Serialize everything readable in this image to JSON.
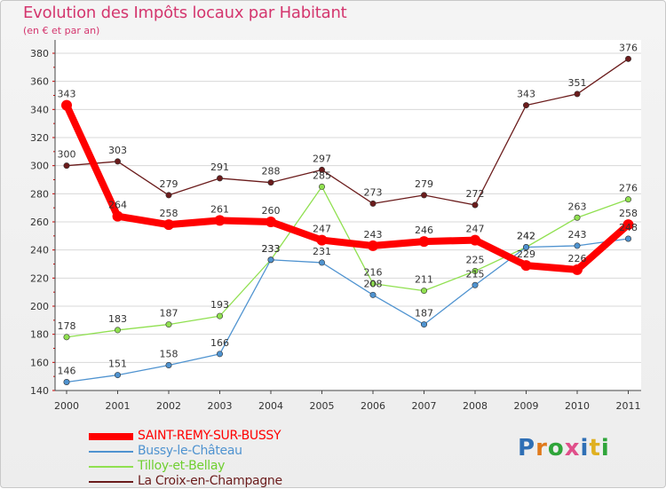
{
  "header": {
    "title": "Evolution des Impôts locaux par Habitant",
    "subtitle": "(en € et par an)"
  },
  "logo": {
    "text": "Proxiti",
    "letter_colors": [
      "#2f6fb5",
      "#e07a1c",
      "#2fa53a",
      "#e04f8a",
      "#2f6fb5",
      "#e0b020",
      "#2fa53a"
    ]
  },
  "chart_data": {
    "type": "line",
    "title": "Evolution des Impôts locaux par Habitant",
    "subtitle": "(en € et par an)",
    "xlabel": "",
    "ylabel": "",
    "x": [
      "2000",
      "2001",
      "2002",
      "2003",
      "2004",
      "2005",
      "2006",
      "2007",
      "2008",
      "2009",
      "2010",
      "2011"
    ],
    "ylim": [
      140,
      380
    ],
    "yticks": [
      140,
      160,
      180,
      200,
      220,
      240,
      260,
      280,
      300,
      320,
      340,
      360,
      380
    ],
    "grid": "horizontal",
    "legend_position": "bottom-left",
    "series": [
      {
        "name": "SAINT-REMY-SUR-BUSSY",
        "color": "#ff0000",
        "values": [
          343,
          264,
          258,
          261,
          260,
          247,
          243,
          246,
          247,
          229,
          226,
          258
        ]
      },
      {
        "name": "Bussy-le-Château",
        "color": "#4f93d0",
        "values": [
          146,
          151,
          158,
          166,
          233,
          231,
          208,
          187,
          215,
          242,
          243,
          248
        ]
      },
      {
        "name": "Tilloy-et-Bellay",
        "color": "#90e050",
        "values": [
          178,
          183,
          187,
          193,
          233,
          285,
          216,
          211,
          225,
          242,
          263,
          276
        ]
      },
      {
        "name": "La Croix-en-Champagne",
        "color": "#6b1c1c",
        "values": [
          300,
          303,
          279,
          291,
          288,
          297,
          273,
          279,
          272,
          343,
          351,
          376
        ]
      }
    ]
  }
}
